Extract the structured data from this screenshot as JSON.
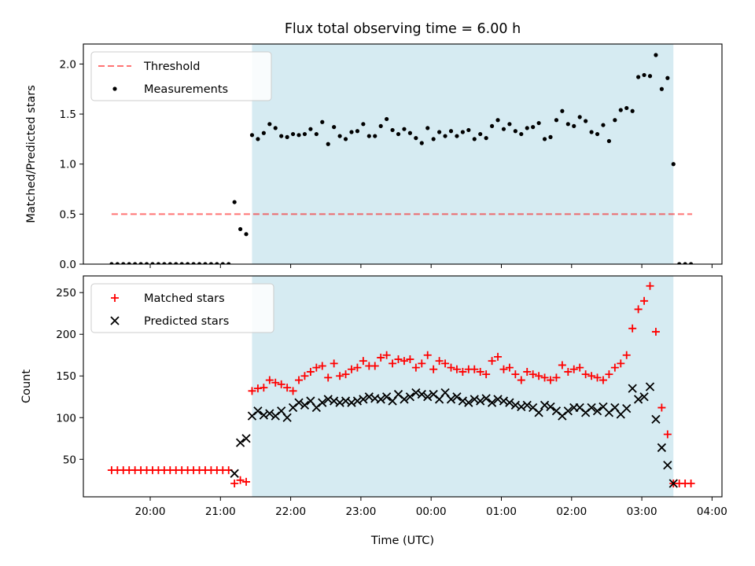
{
  "title": "Flux total observing time = 6.00 h",
  "colors": {
    "shade": "#add8e6",
    "threshold": "#ff0000",
    "measurements": "#000000",
    "matched": "#ff0000",
    "predicted": "#000000"
  },
  "chart_data": [
    {
      "type": "scatter",
      "panel": "top",
      "ylabel": "Matched/Predicted stars",
      "xlabel": "",
      "ylim": [
        0,
        2.2
      ],
      "yticks": [
        0.0,
        0.5,
        1.0,
        1.5,
        2.0
      ],
      "ytick_labels": [
        "0.0",
        "0.5",
        "1.0",
        "1.5",
        "2.0"
      ],
      "shaded_span": [
        "21:27",
        "03:27"
      ],
      "legend": {
        "position": "top-left",
        "entries": [
          "Threshold",
          "Measurements"
        ]
      },
      "series": [
        {
          "name": "Threshold",
          "style": "dashed-line",
          "x": [
            "19:27",
            "03:43"
          ],
          "y": [
            0.5,
            0.5
          ]
        },
        {
          "name": "Measurements",
          "style": "dot",
          "x": [
            "19:27",
            "19:32",
            "19:37",
            "19:42",
            "19:47",
            "19:52",
            "19:57",
            "20:02",
            "20:07",
            "20:12",
            "20:17",
            "20:22",
            "20:27",
            "20:32",
            "20:37",
            "20:42",
            "20:47",
            "20:52",
            "20:57",
            "21:02",
            "21:07",
            "21:12",
            "21:17",
            "21:22",
            "21:27",
            "21:32",
            "21:37",
            "21:42",
            "21:47",
            "21:52",
            "21:57",
            "22:02",
            "22:07",
            "22:12",
            "22:17",
            "22:22",
            "22:27",
            "22:32",
            "22:37",
            "22:42",
            "22:47",
            "22:52",
            "22:57",
            "23:02",
            "23:07",
            "23:12",
            "23:17",
            "23:22",
            "23:27",
            "23:32",
            "23:37",
            "23:42",
            "23:47",
            "23:52",
            "23:57",
            "00:02",
            "00:07",
            "00:12",
            "00:17",
            "00:22",
            "00:27",
            "00:32",
            "00:37",
            "00:42",
            "00:47",
            "00:52",
            "00:57",
            "01:02",
            "01:07",
            "01:12",
            "01:17",
            "01:22",
            "01:27",
            "01:32",
            "01:37",
            "01:42",
            "01:47",
            "01:52",
            "01:57",
            "02:02",
            "02:07",
            "02:12",
            "02:17",
            "02:22",
            "02:27",
            "02:32",
            "02:37",
            "02:42",
            "02:47",
            "02:52",
            "02:57",
            "03:02",
            "03:07",
            "03:12",
            "03:17",
            "03:22",
            "03:27",
            "03:32",
            "03:37",
            "03:42"
          ],
          "y": [
            0,
            0,
            0,
            0,
            0,
            0,
            0,
            0,
            0,
            0,
            0,
            0,
            0,
            0,
            0,
            0,
            0,
            0,
            0,
            0,
            0,
            0.62,
            0.35,
            0.3,
            1.29,
            1.25,
            1.31,
            1.4,
            1.36,
            1.28,
            1.27,
            1.3,
            1.29,
            1.3,
            1.35,
            1.3,
            1.42,
            1.2,
            1.37,
            1.28,
            1.25,
            1.32,
            1.33,
            1.4,
            1.28,
            1.28,
            1.38,
            1.45,
            1.34,
            1.3,
            1.35,
            1.31,
            1.26,
            1.21,
            1.36,
            1.25,
            1.32,
            1.28,
            1.33,
            1.28,
            1.32,
            1.34,
            1.25,
            1.3,
            1.26,
            1.38,
            1.44,
            1.35,
            1.4,
            1.33,
            1.3,
            1.36,
            1.37,
            1.41,
            1.25,
            1.27,
            1.44,
            1.53,
            1.4,
            1.38,
            1.47,
            1.43,
            1.32,
            1.3,
            1.39,
            1.23,
            1.44,
            1.54,
            1.56,
            1.53,
            1.87,
            1.89,
            1.88,
            2.09,
            1.75,
            1.86,
            1.0,
            0,
            0,
            0
          ]
        }
      ]
    },
    {
      "type": "scatter",
      "panel": "bottom",
      "ylabel": "Count",
      "xlabel": "Time (UTC)",
      "ylim": [
        5,
        270
      ],
      "yticks": [
        50,
        100,
        150,
        200,
        250
      ],
      "ytick_labels": [
        "50",
        "100",
        "150",
        "200",
        "250"
      ],
      "xticks": [
        "20:00",
        "21:00",
        "22:00",
        "23:00",
        "00:00",
        "01:00",
        "02:00",
        "03:00",
        "04:00"
      ],
      "shaded_span": [
        "21:27",
        "03:27"
      ],
      "legend": {
        "position": "top-left",
        "entries": [
          "Matched stars",
          "Predicted stars"
        ]
      },
      "series": [
        {
          "name": "Matched stars",
          "marker": "plus",
          "x": [
            "19:27",
            "19:32",
            "19:37",
            "19:42",
            "19:47",
            "19:52",
            "19:57",
            "20:02",
            "20:07",
            "20:12",
            "20:17",
            "20:22",
            "20:27",
            "20:32",
            "20:37",
            "20:42",
            "20:47",
            "20:52",
            "20:57",
            "21:02",
            "21:07",
            "21:12",
            "21:17",
            "21:22",
            "21:27",
            "21:32",
            "21:37",
            "21:42",
            "21:47",
            "21:52",
            "21:57",
            "22:02",
            "22:07",
            "22:12",
            "22:17",
            "22:22",
            "22:27",
            "22:32",
            "22:37",
            "22:42",
            "22:47",
            "22:52",
            "22:57",
            "23:02",
            "23:07",
            "23:12",
            "23:17",
            "23:22",
            "23:27",
            "23:32",
            "23:37",
            "23:42",
            "23:47",
            "23:52",
            "23:57",
            "00:02",
            "00:07",
            "00:12",
            "00:17",
            "00:22",
            "00:27",
            "00:32",
            "00:37",
            "00:42",
            "00:47",
            "00:52",
            "00:57",
            "01:02",
            "01:07",
            "01:12",
            "01:17",
            "01:22",
            "01:27",
            "01:32",
            "01:37",
            "01:42",
            "01:47",
            "01:52",
            "01:57",
            "02:02",
            "02:07",
            "02:12",
            "02:17",
            "02:22",
            "02:27",
            "02:32",
            "02:37",
            "02:42",
            "02:47",
            "02:52",
            "02:57",
            "03:02",
            "03:07",
            "03:12",
            "03:17",
            "03:22",
            "03:27",
            "03:32",
            "03:37",
            "03:42"
          ],
          "y": [
            37,
            37,
            37,
            37,
            37,
            37,
            37,
            37,
            37,
            37,
            37,
            37,
            37,
            37,
            37,
            37,
            37,
            37,
            37,
            37,
            37,
            21,
            25,
            23,
            132,
            135,
            136,
            145,
            142,
            140,
            136,
            132,
            145,
            150,
            155,
            160,
            162,
            148,
            165,
            150,
            152,
            158,
            160,
            168,
            162,
            162,
            172,
            175,
            165,
            170,
            168,
            170,
            160,
            165,
            175,
            158,
            168,
            165,
            160,
            158,
            155,
            158,
            158,
            155,
            152,
            168,
            173,
            158,
            160,
            152,
            145,
            155,
            152,
            150,
            148,
            145,
            148,
            163,
            155,
            158,
            160,
            152,
            150,
            148,
            145,
            152,
            160,
            165,
            175,
            207,
            230,
            240,
            258,
            203,
            112,
            80,
            21,
            21,
            21,
            21
          ]
        },
        {
          "name": "Predicted stars",
          "marker": "x",
          "x": [
            "21:12",
            "21:17",
            "21:22",
            "21:27",
            "21:32",
            "21:37",
            "21:42",
            "21:47",
            "21:52",
            "21:57",
            "22:02",
            "22:07",
            "22:12",
            "22:17",
            "22:22",
            "22:27",
            "22:32",
            "22:37",
            "22:42",
            "22:47",
            "22:52",
            "22:57",
            "23:02",
            "23:07",
            "23:12",
            "23:17",
            "23:22",
            "23:27",
            "23:32",
            "23:37",
            "23:42",
            "23:47",
            "23:52",
            "23:57",
            "00:02",
            "00:07",
            "00:12",
            "00:17",
            "00:22",
            "00:27",
            "00:32",
            "00:37",
            "00:42",
            "00:47",
            "00:52",
            "00:57",
            "01:02",
            "01:07",
            "01:12",
            "01:17",
            "01:22",
            "01:27",
            "01:32",
            "01:37",
            "01:42",
            "01:47",
            "01:52",
            "01:57",
            "02:02",
            "02:07",
            "02:12",
            "02:17",
            "02:22",
            "02:27",
            "02:32",
            "02:37",
            "02:42",
            "02:47",
            "02:52",
            "02:57",
            "03:02",
            "03:07",
            "03:12",
            "03:17",
            "03:22",
            "03:27"
          ],
          "y": [
            33,
            70,
            75,
            102,
            108,
            103,
            105,
            102,
            108,
            100,
            112,
            118,
            115,
            120,
            112,
            118,
            122,
            120,
            118,
            120,
            118,
            120,
            122,
            125,
            123,
            122,
            125,
            120,
            128,
            122,
            125,
            130,
            128,
            125,
            128,
            122,
            130,
            122,
            125,
            120,
            118,
            122,
            120,
            123,
            118,
            122,
            120,
            118,
            115,
            113,
            115,
            112,
            106,
            115,
            113,
            108,
            102,
            108,
            112,
            112,
            106,
            112,
            108,
            113,
            106,
            112,
            104,
            111,
            135,
            122,
            125,
            137,
            98,
            64,
            43,
            21
          ]
        }
      ]
    }
  ]
}
